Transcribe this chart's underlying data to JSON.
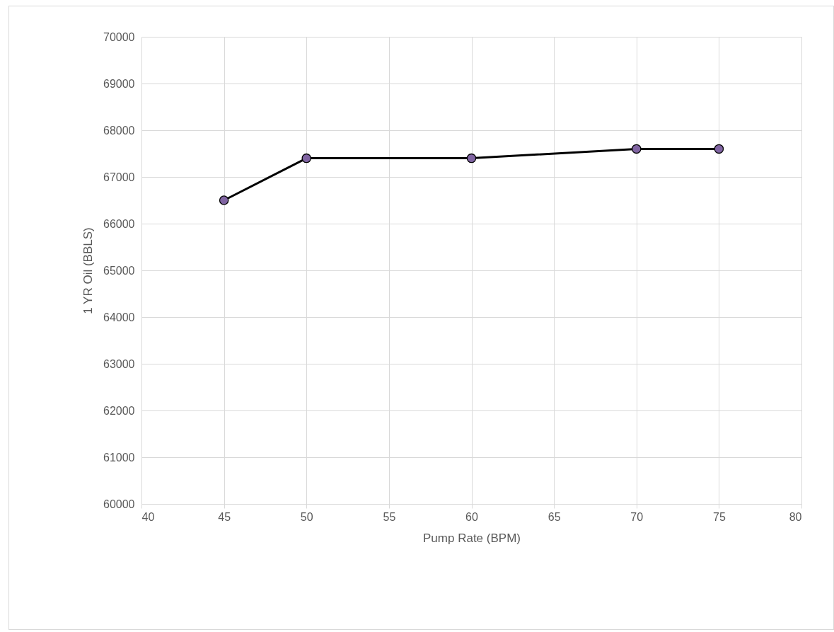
{
  "chart_data": {
    "type": "line",
    "xlabel": "Pump Rate (BPM)",
    "ylabel": "1 YR Oil (BBLS)",
    "x": [
      45,
      50,
      60,
      70,
      75
    ],
    "series": [
      {
        "color": "#000000",
        "colors": [
          "#8064a2",
          "#8064a2",
          "#8064a2",
          "#8064a2",
          "#8064a2"
        ],
        "values": [
          66500,
          67400,
          67400,
          67600,
          67600
        ]
      }
    ],
    "xlim": [
      40,
      80
    ],
    "xticks": [
      40,
      45,
      50,
      55,
      60,
      65,
      70,
      75,
      80
    ],
    "ylim": [
      60000,
      70000
    ],
    "yticks": [
      60000,
      61000,
      62000,
      63000,
      64000,
      65000,
      66000,
      67000,
      68000,
      69000,
      70000
    ],
    "grid": true,
    "marker": "circle",
    "line_style": "solid"
  }
}
